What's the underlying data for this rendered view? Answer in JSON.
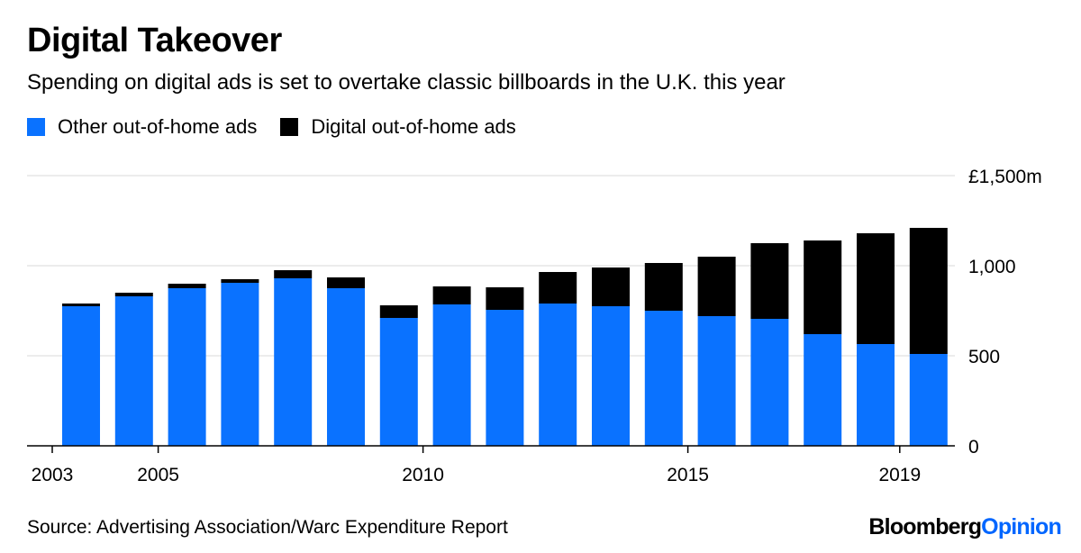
{
  "title": "Digital Takeover",
  "subtitle": "Spending on digital ads is set to overtake classic billboards in the U.K. this year",
  "legend": [
    {
      "label": "Other out-of-home ads",
      "color": "#0a72ff"
    },
    {
      "label": "Digital out-of-home ads",
      "color": "#000000"
    }
  ],
  "source": "Source: Advertising Association/Warc Expenditure Report",
  "brand": {
    "part1": "Bloomberg",
    "part2": "Opinion"
  },
  "chart_data": {
    "type": "bar",
    "stacked": true,
    "categories": [
      "2003",
      "2004",
      "2005",
      "2006",
      "2007",
      "2008",
      "2009",
      "2010",
      "2011",
      "2012",
      "2013",
      "2014",
      "2015",
      "2016",
      "2017",
      "2018",
      "2019"
    ],
    "series": [
      {
        "name": "Other out-of-home ads",
        "color": "#0a72ff",
        "values": [
          775,
          830,
          875,
          905,
          930,
          875,
          710,
          785,
          755,
          790,
          775,
          750,
          720,
          705,
          620,
          565,
          510
        ]
      },
      {
        "name": "Digital out-of-home ads",
        "color": "#000000",
        "values": [
          15,
          20,
          25,
          20,
          45,
          60,
          70,
          100,
          125,
          175,
          215,
          265,
          330,
          420,
          520,
          615,
          700
        ]
      }
    ],
    "x_tick_labels": [
      "2003",
      "2005",
      "2010",
      "2015",
      "2019"
    ],
    "y_ticks": [
      0,
      500,
      1000,
      1500
    ],
    "y_tick_labels": [
      "0",
      "500",
      "1,000",
      "£1,500m"
    ],
    "ylim": [
      0,
      1500
    ],
    "y_axis_position": "right",
    "grid": true
  }
}
